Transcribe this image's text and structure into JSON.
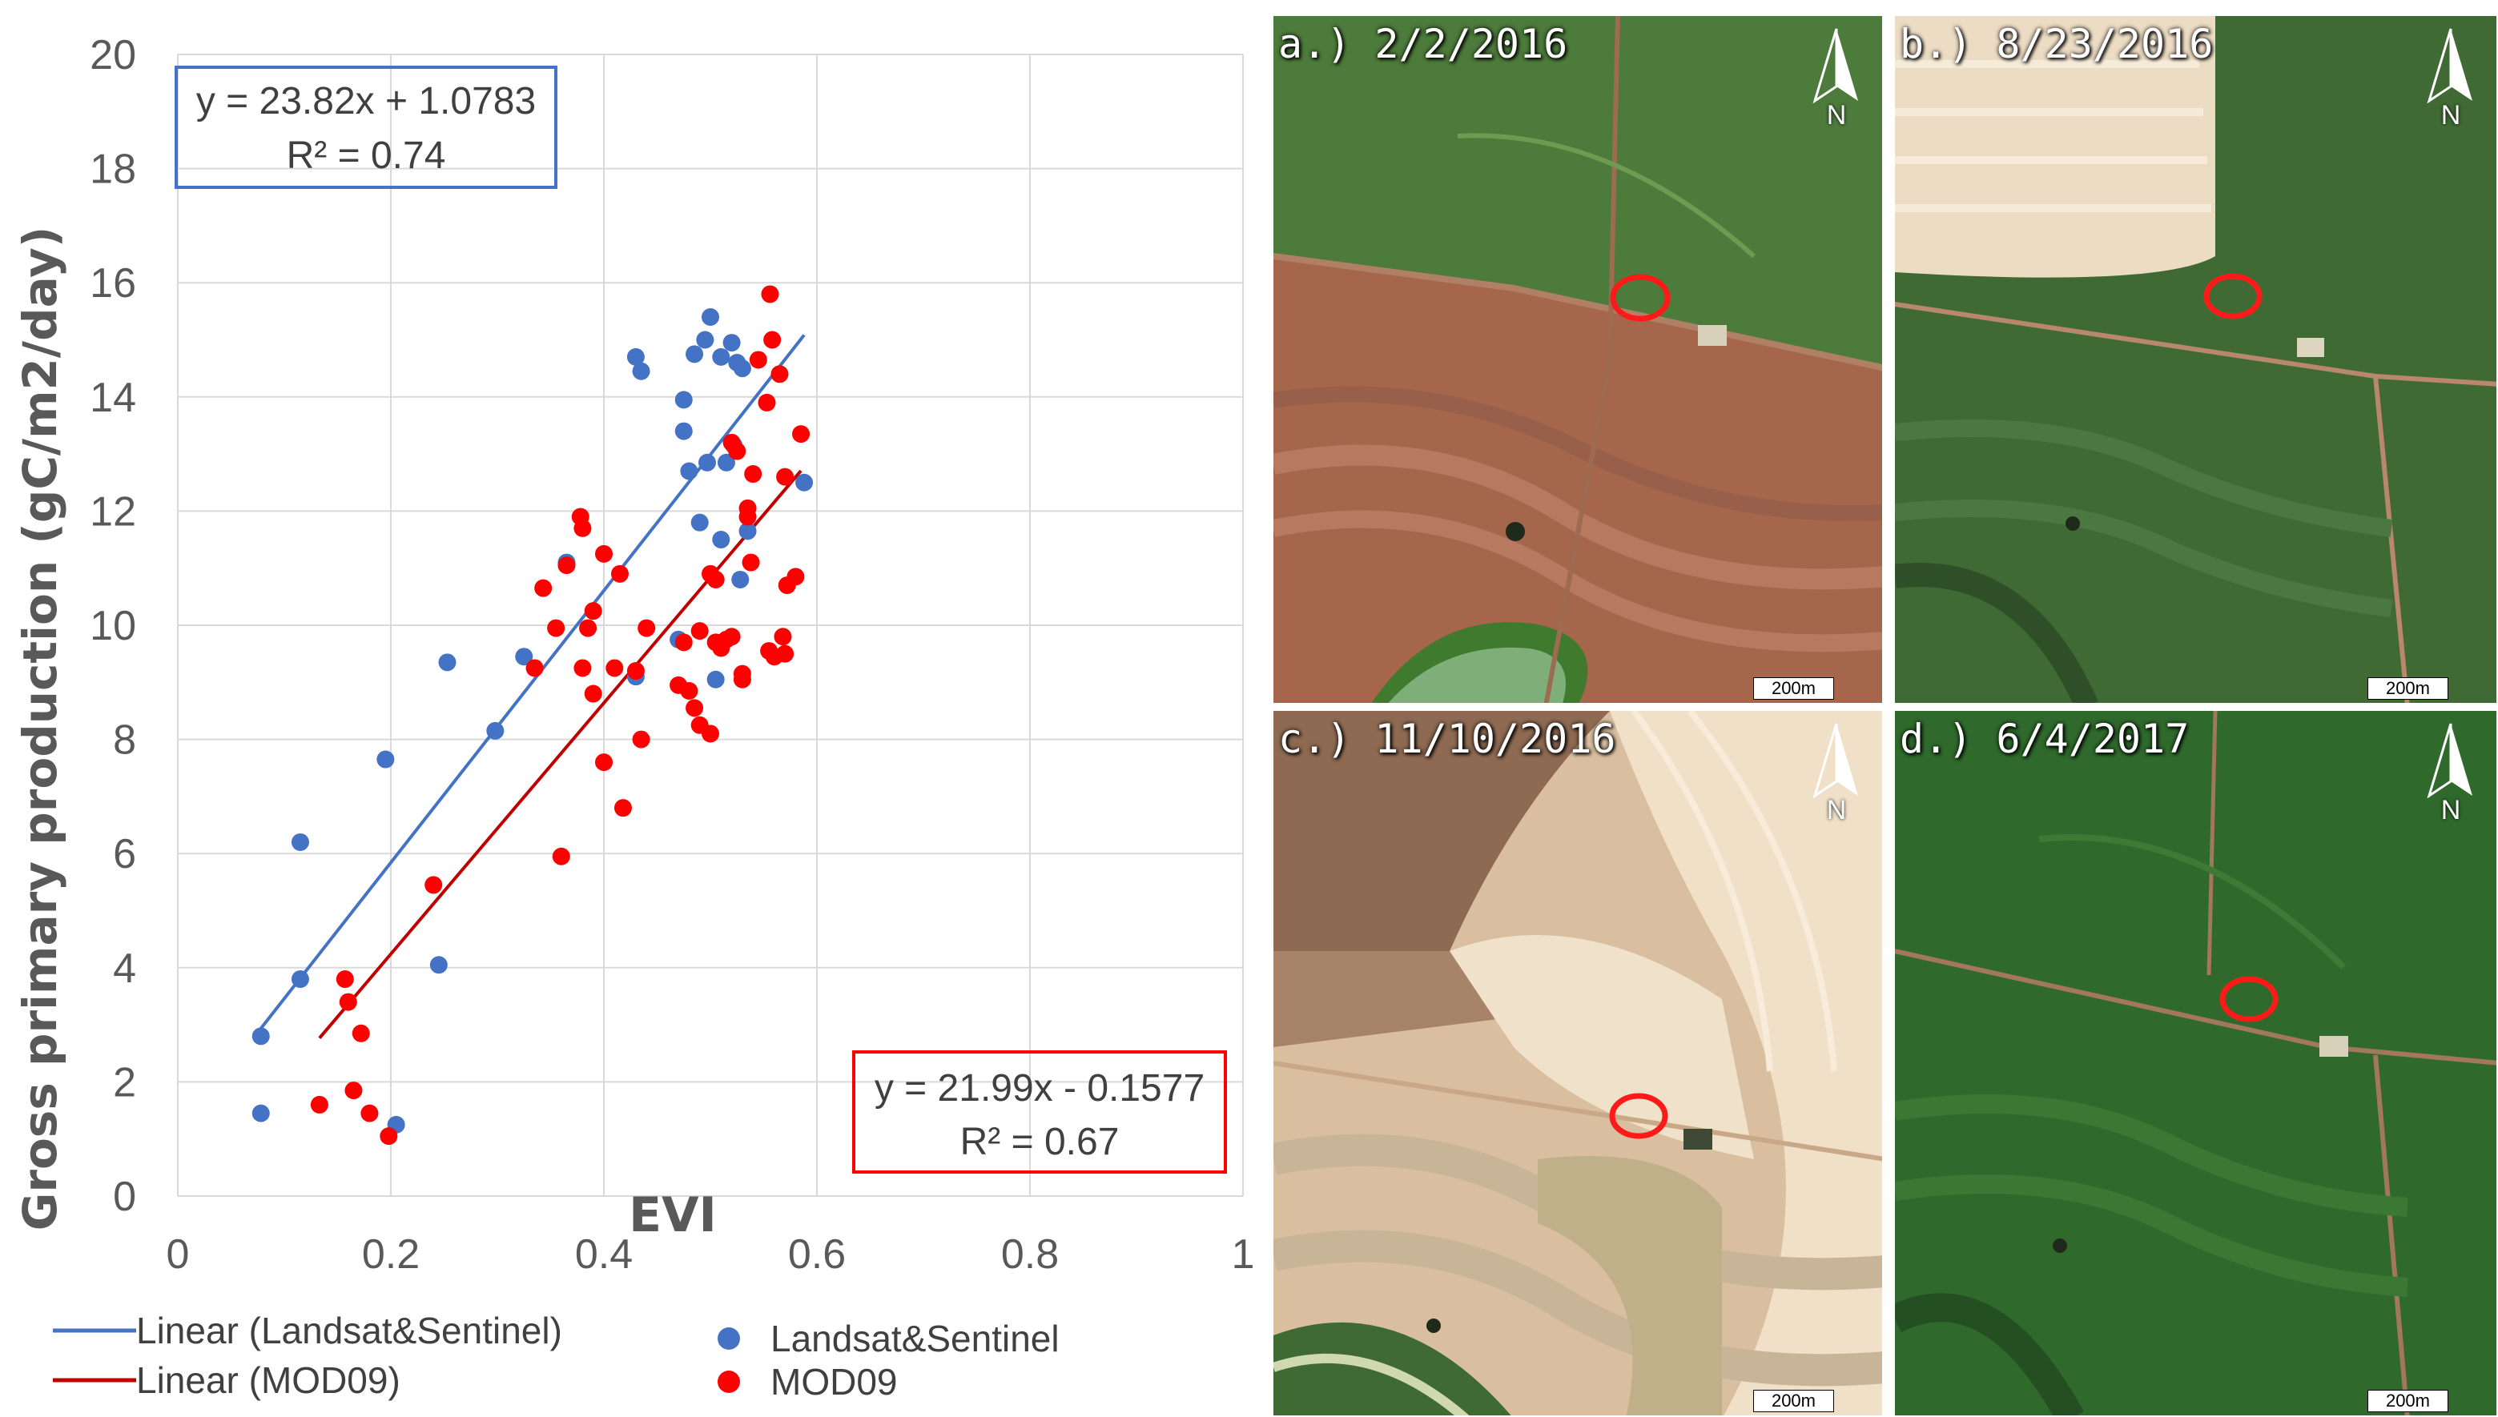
{
  "chart_data": {
    "type": "scatter",
    "xlabel": "EVI",
    "ylabel": "Gross primary production  (gC/m2/day)",
    "xlim": [
      0,
      1
    ],
    "ylim": [
      0,
      20
    ],
    "x_ticks": [
      "0",
      "0.2",
      "0.4",
      "0.6",
      "0.8",
      "1"
    ],
    "y_ticks": [
      "0",
      "2",
      "4",
      "6",
      "8",
      "10",
      "12",
      "14",
      "16",
      "18",
      "20"
    ],
    "grid": true,
    "series": [
      {
        "name": "Landsat&Sentinel",
        "color": "#4472C4",
        "points": [
          [
            0.078,
            1.45
          ],
          [
            0.078,
            2.8
          ],
          [
            0.115,
            3.8
          ],
          [
            0.115,
            6.2
          ],
          [
            0.195,
            7.65
          ],
          [
            0.205,
            1.25
          ],
          [
            0.245,
            4.05
          ],
          [
            0.253,
            9.35
          ],
          [
            0.298,
            8.15
          ],
          [
            0.325,
            9.45
          ],
          [
            0.365,
            11.1
          ],
          [
            0.43,
            9.1
          ],
          [
            0.43,
            14.7
          ],
          [
            0.435,
            14.45
          ],
          [
            0.47,
            9.75
          ],
          [
            0.475,
            13.95
          ],
          [
            0.475,
            13.4
          ],
          [
            0.48,
            12.7
          ],
          [
            0.485,
            14.75
          ],
          [
            0.49,
            11.8
          ],
          [
            0.495,
            15.0
          ],
          [
            0.497,
            12.85
          ],
          [
            0.5,
            15.4
          ],
          [
            0.505,
            9.05
          ],
          [
            0.51,
            14.7
          ],
          [
            0.51,
            11.5
          ],
          [
            0.515,
            12.85
          ],
          [
            0.52,
            14.95
          ],
          [
            0.522,
            13.15
          ],
          [
            0.525,
            14.6
          ],
          [
            0.528,
            10.8
          ],
          [
            0.53,
            14.5
          ],
          [
            0.535,
            11.65
          ],
          [
            0.588,
            12.5
          ]
        ]
      },
      {
        "name": "MOD09",
        "color": "#FF0000",
        "points": [
          [
            0.133,
            1.6
          ],
          [
            0.157,
            3.8
          ],
          [
            0.16,
            3.4
          ],
          [
            0.165,
            1.85
          ],
          [
            0.172,
            2.85
          ],
          [
            0.18,
            1.45
          ],
          [
            0.198,
            1.05
          ],
          [
            0.24,
            5.45
          ],
          [
            0.335,
            9.25
          ],
          [
            0.343,
            10.65
          ],
          [
            0.355,
            9.95
          ],
          [
            0.36,
            5.95
          ],
          [
            0.365,
            11.05
          ],
          [
            0.378,
            11.9
          ],
          [
            0.38,
            9.25
          ],
          [
            0.38,
            11.7
          ],
          [
            0.385,
            9.95
          ],
          [
            0.39,
            8.8
          ],
          [
            0.39,
            10.25
          ],
          [
            0.4,
            7.6
          ],
          [
            0.4,
            11.25
          ],
          [
            0.41,
            9.25
          ],
          [
            0.415,
            10.9
          ],
          [
            0.418,
            6.8
          ],
          [
            0.43,
            9.2
          ],
          [
            0.435,
            8.0
          ],
          [
            0.44,
            9.95
          ],
          [
            0.47,
            8.95
          ],
          [
            0.475,
            9.7
          ],
          [
            0.48,
            8.85
          ],
          [
            0.485,
            8.55
          ],
          [
            0.49,
            8.25
          ],
          [
            0.49,
            9.9
          ],
          [
            0.5,
            10.9
          ],
          [
            0.5,
            8.1
          ],
          [
            0.505,
            10.8
          ],
          [
            0.505,
            9.7
          ],
          [
            0.51,
            9.6
          ],
          [
            0.515,
            9.75
          ],
          [
            0.52,
            13.2
          ],
          [
            0.52,
            9.8
          ],
          [
            0.525,
            13.05
          ],
          [
            0.53,
            9.15
          ],
          [
            0.53,
            9.05
          ],
          [
            0.535,
            11.9
          ],
          [
            0.535,
            12.05
          ],
          [
            0.538,
            11.1
          ],
          [
            0.54,
            12.65
          ],
          [
            0.545,
            14.65
          ],
          [
            0.553,
            13.9
          ],
          [
            0.555,
            9.55
          ],
          [
            0.556,
            15.8
          ],
          [
            0.558,
            15.0
          ],
          [
            0.56,
            9.45
          ],
          [
            0.565,
            14.4
          ],
          [
            0.568,
            9.8
          ],
          [
            0.57,
            12.6
          ],
          [
            0.57,
            9.5
          ],
          [
            0.572,
            10.7
          ],
          [
            0.58,
            10.85
          ],
          [
            0.585,
            13.35
          ]
        ]
      }
    ],
    "trendlines": [
      {
        "name": "Linear (Landsat&Sentinel)",
        "color": "#4472C4",
        "slope": 23.82,
        "intercept": 1.0783,
        "x_range": [
          0.078,
          0.588
        ],
        "equation": "y = 23.82x + 1.0783",
        "r2": "R² = 0.74"
      },
      {
        "name": "Linear (MOD09)",
        "color": "#C00000",
        "slope": 21.99,
        "intercept": -0.1577,
        "x_range": [
          0.133,
          0.585
        ],
        "equation": "y = 21.99x - 0.1577",
        "r2": "R² = 0.67"
      }
    ],
    "legend_placement": "bottom"
  },
  "panels": [
    {
      "label": "a.) 2/2/2016",
      "scale": "200m",
      "north": "N",
      "scene": "a"
    },
    {
      "label": "b.) 8/23/2016",
      "scale": "200m",
      "north": "N",
      "scene": "b"
    },
    {
      "label": "c.) 11/10/2016",
      "scale": "200m",
      "north": "N",
      "scene": "c"
    },
    {
      "label": "d.) 6/4/2017",
      "scale": "200m",
      "north": "N",
      "scene": "d"
    }
  ]
}
